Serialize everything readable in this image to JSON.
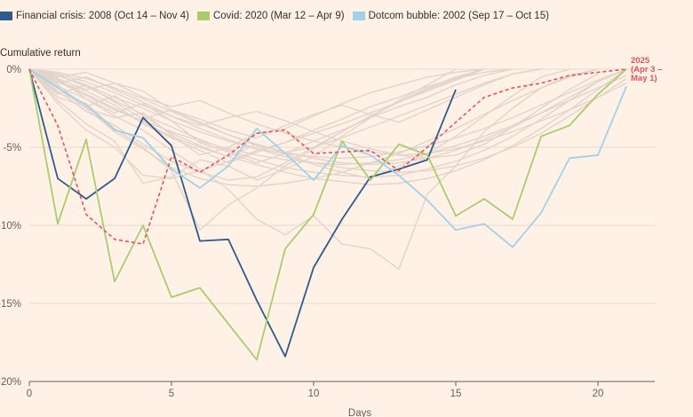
{
  "legend": {
    "items": [
      {
        "label": "Financial crisis: 2008 (Oct 14 – Nov 4)",
        "color": "#2e5b8e"
      },
      {
        "label": "Covid: 2020 (Mar 12 – Apr 9)",
        "color": "#a9cc71"
      },
      {
        "label": "Dotcom bubble: 2002 (Sep 17 – Oct 15)",
        "color": "#9fd2ea"
      }
    ]
  },
  "chart_data": {
    "type": "line",
    "ylabel": "Cumulative return",
    "xlabel": "Days",
    "xlim": [
      0,
      22
    ],
    "ylim": [
      -20,
      0
    ],
    "x_ticks": [
      {
        "value": 0,
        "label": "0"
      },
      {
        "value": 5,
        "label": "5"
      },
      {
        "value": 10,
        "label": "10"
      },
      {
        "value": 15,
        "label": "15"
      },
      {
        "value": 20,
        "label": "20"
      }
    ],
    "y_ticks": [
      {
        "value": 0,
        "label": "0%"
      },
      {
        "value": -5,
        "label": "-5%"
      },
      {
        "value": -10,
        "label": "-10%"
      },
      {
        "value": -15,
        "label": "-15%"
      },
      {
        "value": -20,
        "label": "-20%"
      }
    ],
    "grid": true,
    "background_color": "#fff1e5",
    "gridline_color": "#e6d9ce",
    "background_series_color": "#e2d4ca",
    "background_series": [
      [
        0,
        -1.2,
        -2.5,
        -3.1,
        -2.8,
        -4.2,
        -5.5,
        -5.0,
        -4.1,
        -3.8,
        -3.0,
        -2.2,
        -1.5,
        -1.0,
        -0.5,
        -0.2,
        0
      ],
      [
        0,
        -0.8,
        -1.4,
        -2.3,
        -3.5,
        -4.4,
        -5.2,
        -6.0,
        -5.3,
        -4.7,
        -3.9,
        -3.2,
        -2.4,
        -1.8,
        -1.1,
        -0.6,
        -0.2,
        0
      ],
      [
        0,
        -2.0,
        -3.5,
        -4.6,
        -7.3,
        -6.9,
        -5.8,
        -6.2,
        -7.1,
        -6.4,
        -5.6,
        -4.3,
        -3.1,
        -2.0,
        -1.0,
        0
      ],
      [
        0,
        -1.5,
        -2.2,
        -3.8,
        -5.0,
        -6.5,
        -10.3,
        -8.7,
        -7.6,
        -6.2,
        -5.1,
        -4.0,
        -3.0,
        -2.1,
        -1.2,
        -0.5,
        0
      ],
      [
        0,
        -0.6,
        -1.9,
        -3.0,
        -3.9,
        -5.2,
        -6.4,
        -7.7,
        -9.6,
        -10.6,
        -9.4,
        -11.2,
        -11.5,
        -12.8,
        -8.0,
        -6.2,
        -4.0,
        -2.5,
        -1.2,
        -0.4,
        0
      ],
      [
        0,
        -1.0,
        -2.5,
        -4.0,
        -5.1,
        -6.3,
        -7.0,
        -7.4,
        -7.5,
        -7.3,
        -7.0,
        -6.6,
        -6.0,
        -5.4,
        -4.6,
        -3.8,
        -2.9,
        -2.0,
        -1.2,
        -0.5,
        0
      ],
      [
        0,
        -0.7,
        -1.6,
        -2.5,
        -3.4,
        -4.3,
        -5.0,
        -5.6,
        -6.1,
        -6.6,
        -7.0,
        -7.2,
        -7.4,
        -7.3,
        -7.0,
        -6.5,
        -5.8,
        -4.9,
        -3.8,
        -2.6,
        -1.3,
        0
      ],
      [
        0,
        -0.4,
        -1.1,
        -2.0,
        -2.9,
        -3.7,
        -4.5,
        -5.2,
        -5.8,
        -6.3,
        -6.6,
        -6.8,
        -6.9,
        -6.8,
        -6.4,
        -5.9,
        -5.2,
        -4.3,
        -3.2,
        -2.0,
        -0.8,
        0
      ],
      [
        0,
        -0.9,
        -0.5,
        -1.3,
        -2.1,
        -3.0,
        -3.6,
        -3.1,
        -2.7,
        -3.3,
        -4.0,
        -4.6,
        -5.1,
        -5.5,
        -5.7,
        -5.5,
        -4.8,
        -3.7,
        -2.5,
        -1.3,
        -0.3
      ],
      [
        0,
        -1.8,
        -2.4,
        -1.7,
        -3.0,
        -4.1,
        -4.9,
        -5.6,
        -4.8,
        -5.4,
        -6.1,
        -6.6,
        -7.0,
        -6.2,
        -5.4,
        -4.3,
        -3.0,
        -1.7,
        -0.5,
        0
      ],
      [
        0,
        -0.3,
        -0.8,
        -1.5,
        -2.3,
        -3.0,
        -3.8,
        -4.5,
        -5.1,
        -5.6,
        -6.0,
        -6.3,
        -6.5,
        -6.6,
        -6.5,
        -6.2,
        -5.7,
        -5.0,
        -4.1,
        -3.0,
        -1.8,
        -0.6
      ],
      [
        0,
        -0.5,
        -0.2,
        -0.9,
        -1.4,
        -2.6,
        -3.2,
        -3.9,
        -4.4,
        -3.6,
        -2.9,
        -2.3,
        -2.9,
        -3.4,
        -2.6,
        -1.8,
        -1.0,
        -0.3,
        0
      ],
      [
        0,
        -1.1,
        -1.9,
        -2.8,
        -2.2,
        -3.3,
        -4.7,
        -5.3,
        -6.0,
        -5.4,
        -4.6,
        -3.9,
        -3.1,
        -2.4,
        -1.8,
        -1.0,
        -0.4,
        0
      ],
      [
        0,
        -0.2,
        -0.6,
        -1.2,
        -1.9,
        -2.7,
        -3.5,
        -4.2,
        -4.8,
        -5.3,
        -5.7,
        -6.0,
        -6.1,
        -6.0,
        -5.7,
        -5.2,
        -4.5,
        -3.7,
        -2.8,
        -1.8,
        -0.8,
        0
      ],
      [
        0,
        -1.4,
        -2.7,
        -3.6,
        -4.8,
        -5.9,
        -6.6,
        -7.1,
        -6.9,
        -6.0,
        -5.0,
        -4.0,
        -3.0,
        -2.1,
        -1.3,
        -0.6,
        0
      ],
      [
        0,
        -0.6,
        -1.3,
        -0.9,
        -1.8,
        -2.4,
        -2.0,
        -2.8,
        -3.5,
        -4.1,
        -4.6,
        -5.0,
        -5.3,
        -5.5,
        -5.4,
        -5.1,
        -4.6,
        -4.0,
        -3.3,
        -2.6,
        -1.8,
        -0.9
      ],
      [
        0,
        -2.2,
        -3.9,
        -5.0,
        -6.8,
        -7.0,
        -6.5,
        -5.9,
        -5.2,
        -4.7,
        -4.1,
        -3.5,
        -2.8,
        -2.1,
        -1.4,
        -0.7,
        0
      ],
      [
        0,
        -0.8,
        -1.7,
        -2.6,
        -3.3,
        -4.0,
        -4.6,
        -5.1,
        -5.5,
        -5.8,
        -6.0,
        -6.1,
        -6.0,
        -5.8,
        -5.4,
        -4.9,
        -4.3,
        -3.6,
        -2.8,
        -2.0,
        -1.2,
        -0.4
      ],
      [
        0,
        -1.6,
        -1.0,
        -2.1,
        -3.2,
        -2.6,
        -3.4,
        -4.2,
        -4.9,
        -5.3,
        -5.0,
        -4.4,
        -3.7,
        -3.0,
        -2.3,
        -1.6,
        -0.9,
        -0.3,
        0
      ],
      [
        0,
        -0.4,
        -1.0,
        -1.8,
        -2.5,
        -3.3,
        -4.0,
        -4.6,
        -5.1,
        -5.4,
        -5.6,
        -5.7,
        -5.6,
        -5.3,
        -4.9,
        -4.4,
        -3.8,
        -3.1,
        -2.3,
        -1.5,
        -0.7,
        0
      ]
    ],
    "series": [
      {
        "color": "#2e5b8e",
        "style": "solid",
        "x": [
          0,
          1,
          2,
          3,
          4,
          5,
          6,
          7,
          8,
          9,
          10,
          11,
          12,
          13,
          14,
          15
        ],
        "values": [
          0,
          -7.0,
          -8.3,
          -7.0,
          -3.1,
          -4.9,
          -11.0,
          -10.9,
          -14.8,
          -18.4,
          -12.7,
          -9.6,
          -6.9,
          -6.4,
          -5.8,
          -1.3
        ]
      },
      {
        "color": "#a9cc71",
        "style": "solid",
        "x": [
          0,
          1,
          2,
          3,
          4,
          5,
          6,
          7,
          8,
          9,
          10,
          11,
          12,
          13,
          14,
          15,
          16,
          17,
          18,
          19,
          20,
          21
        ],
        "values": [
          0,
          -9.9,
          -4.5,
          -13.6,
          -10.0,
          -14.6,
          -14.0,
          -16.3,
          -18.6,
          -11.5,
          -9.3,
          -4.6,
          -7.1,
          -4.8,
          -5.5,
          -9.4,
          -8.3,
          -9.6,
          -4.3,
          -3.6,
          -1.6,
          0
        ]
      },
      {
        "color": "#9fd2ea",
        "style": "solid",
        "x": [
          0,
          1,
          2,
          3,
          4,
          5,
          6,
          7,
          8,
          9,
          10,
          11,
          12,
          13,
          14,
          15,
          16,
          17,
          18,
          19,
          20,
          21
        ],
        "values": [
          0,
          -1.2,
          -2.3,
          -3.9,
          -4.4,
          -6.4,
          -7.6,
          -6.2,
          -3.8,
          -5.4,
          -7.1,
          -4.9,
          -5.5,
          -6.8,
          -8.4,
          -10.3,
          -9.9,
          -11.4,
          -9.2,
          -5.7,
          -5.5,
          -1.1
        ]
      },
      {
        "name": "2025 (Apr 3 – May 1)",
        "color": "#e8505b",
        "style": "dashed",
        "x": [
          0,
          1,
          2,
          3,
          4,
          5,
          6,
          7,
          8,
          9,
          10,
          11,
          12,
          13,
          14,
          15,
          16,
          17,
          18,
          19,
          20,
          21
        ],
        "values": [
          0,
          -3.6,
          -9.3,
          -10.9,
          -11.2,
          -5.6,
          -6.6,
          -5.5,
          -4.1,
          -3.9,
          -5.4,
          -5.3,
          -5.2,
          -6.5,
          -5.0,
          -3.4,
          -1.8,
          -1.2,
          -0.9,
          -0.4,
          -0.2,
          0
        ]
      }
    ],
    "annotation": {
      "label_lines": [
        "2025",
        "(Apr 3 –",
        "May 1)"
      ],
      "color": "#e8505b"
    }
  }
}
